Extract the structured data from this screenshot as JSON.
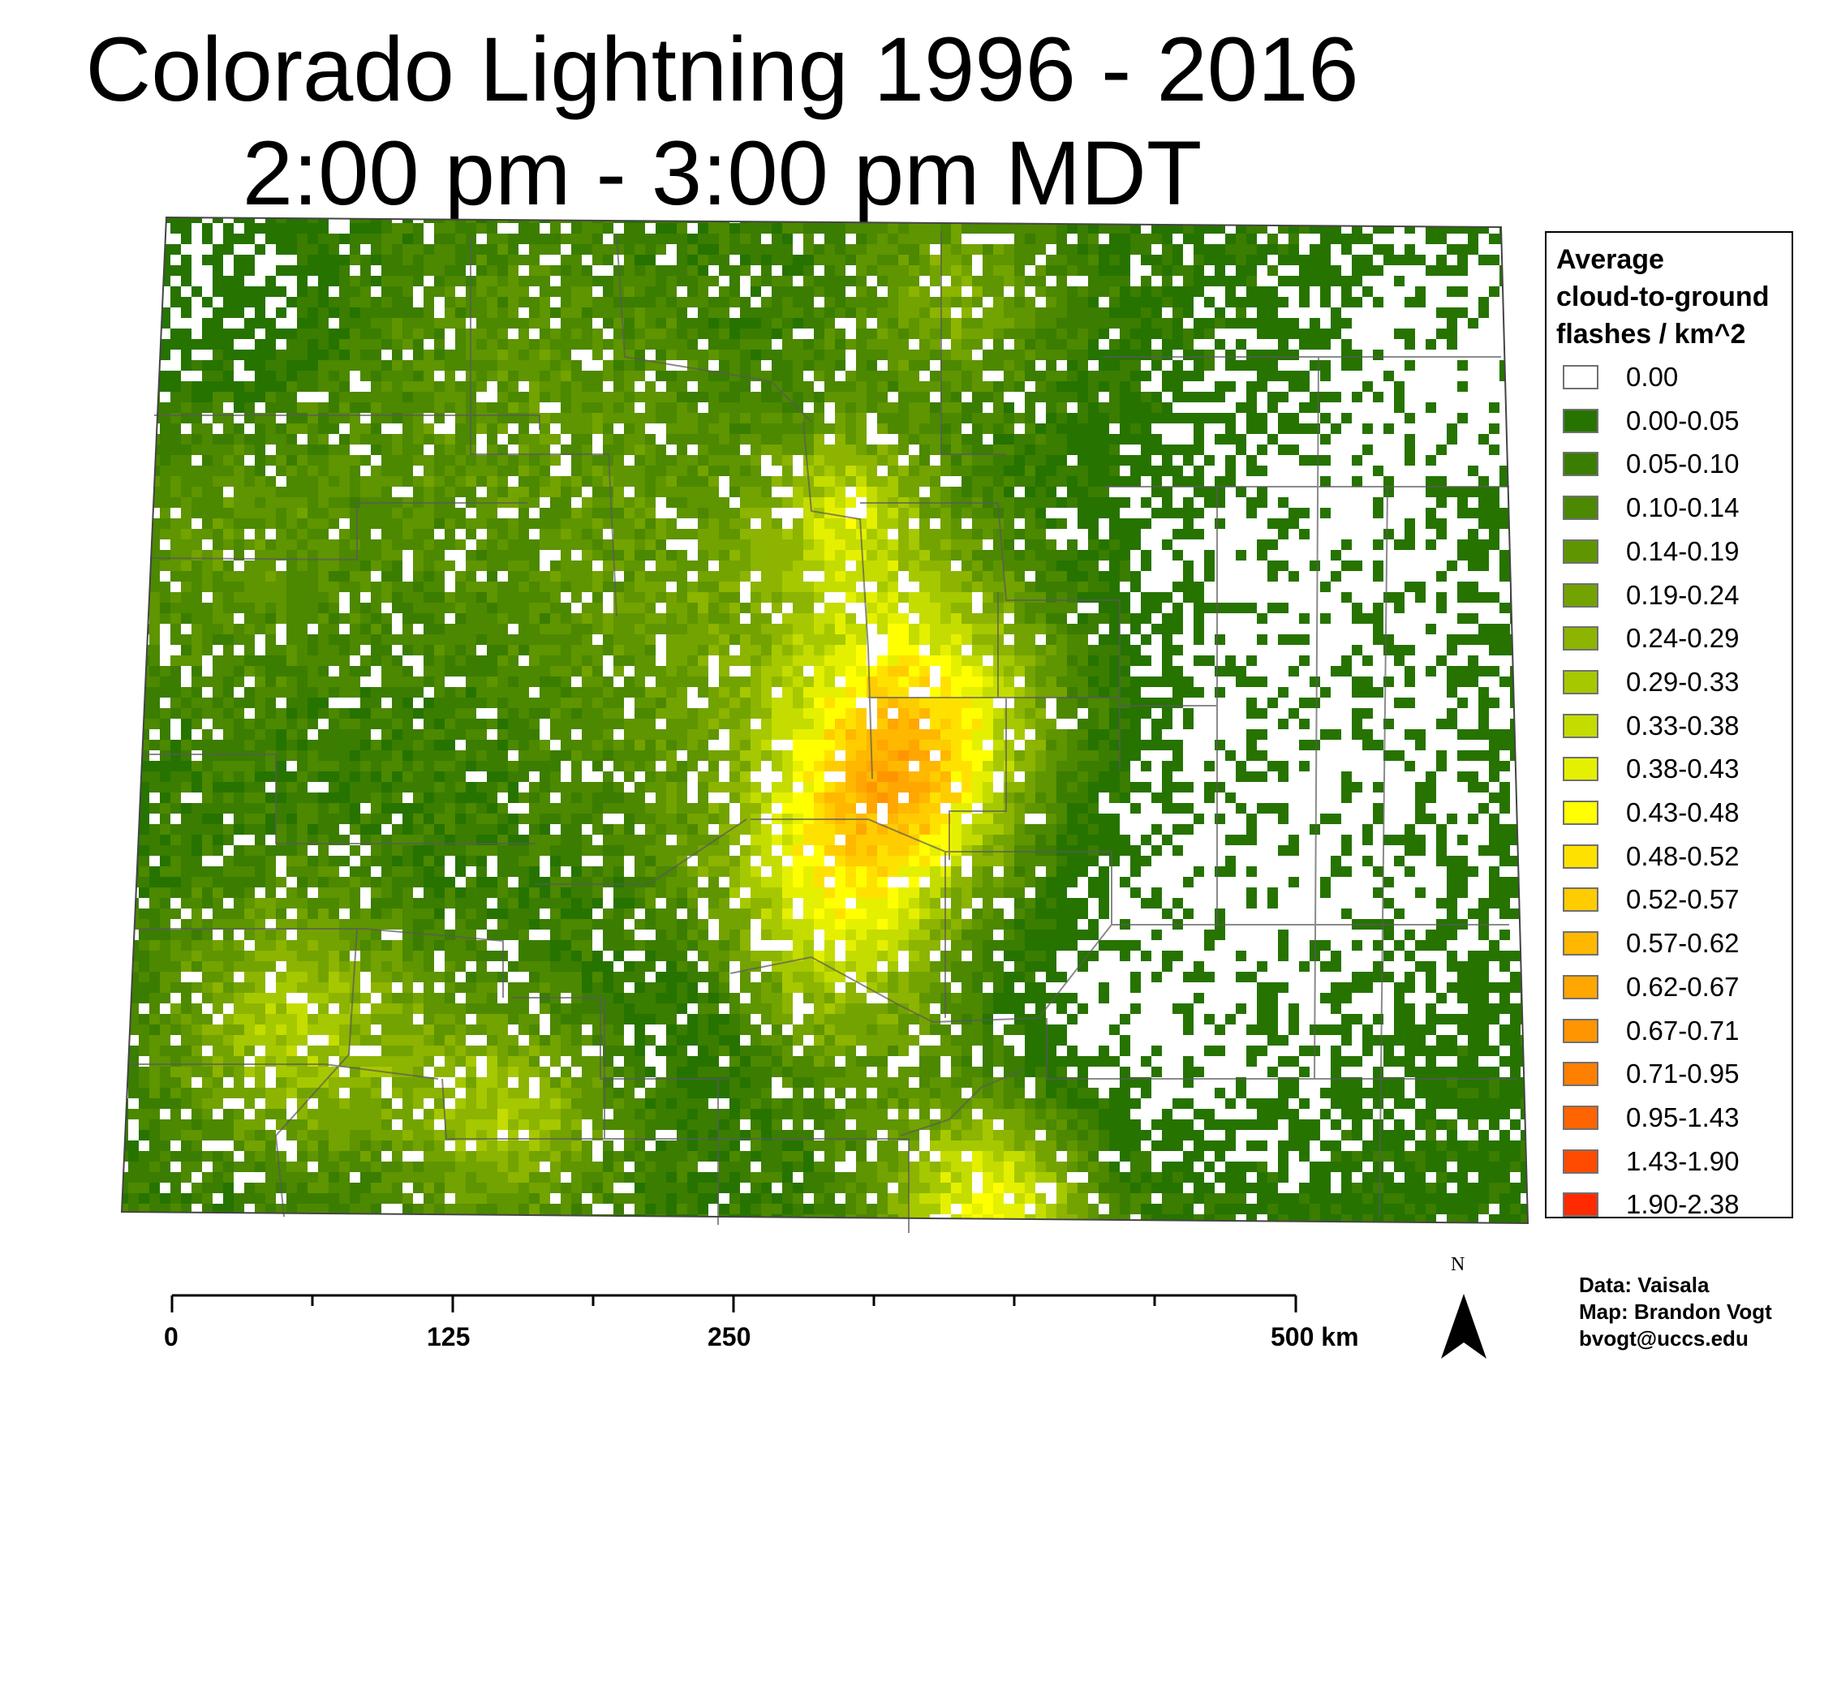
{
  "title": {
    "line1": "Colorado Lightning 1996 - 2016",
    "line2": "2:00 pm - 3:00 pm MDT"
  },
  "legend": {
    "title_lines": [
      "Average",
      "cloud-to-ground",
      "flashes / km^2"
    ],
    "items": [
      {
        "label": "0.00",
        "color": "#ffffff"
      },
      {
        "label": "0.00-0.05",
        "color": "#267300"
      },
      {
        "label": "0.05-0.10",
        "color": "#3a7d00"
      },
      {
        "label": "0.10-0.14",
        "color": "#4c8800"
      },
      {
        "label": "0.14-0.19",
        "color": "#5e9500"
      },
      {
        "label": "0.19-0.24",
        "color": "#73a300"
      },
      {
        "label": "0.24-0.29",
        "color": "#8cb400"
      },
      {
        "label": "0.29-0.33",
        "color": "#a6c800"
      },
      {
        "label": "0.33-0.38",
        "color": "#c4dc00"
      },
      {
        "label": "0.38-0.43",
        "color": "#e5f000"
      },
      {
        "label": "0.43-0.48",
        "color": "#ffff00"
      },
      {
        "label": "0.48-0.52",
        "color": "#ffe100"
      },
      {
        "label": "0.52-0.57",
        "color": "#ffcc00"
      },
      {
        "label": "0.57-0.62",
        "color": "#ffb700"
      },
      {
        "label": "0.62-0.67",
        "color": "#ffa600"
      },
      {
        "label": "0.67-0.71",
        "color": "#ff9500"
      },
      {
        "label": "0.71-0.95",
        "color": "#ff7f00"
      },
      {
        "label": "0.95-1.43",
        "color": "#ff6400"
      },
      {
        "label": "1.43-1.90",
        "color": "#ff4b00"
      },
      {
        "label": "1.90-2.38",
        "color": "#ff2a00"
      }
    ]
  },
  "scale_bar": {
    "labels": [
      "0",
      "125",
      "250",
      "500 km"
    ]
  },
  "north_arrow": {
    "label": "N"
  },
  "credits": {
    "data": "Data: Vaisala",
    "map": "Map: Brandon Vogt",
    "email": "bvogt@uccs.edu"
  }
}
